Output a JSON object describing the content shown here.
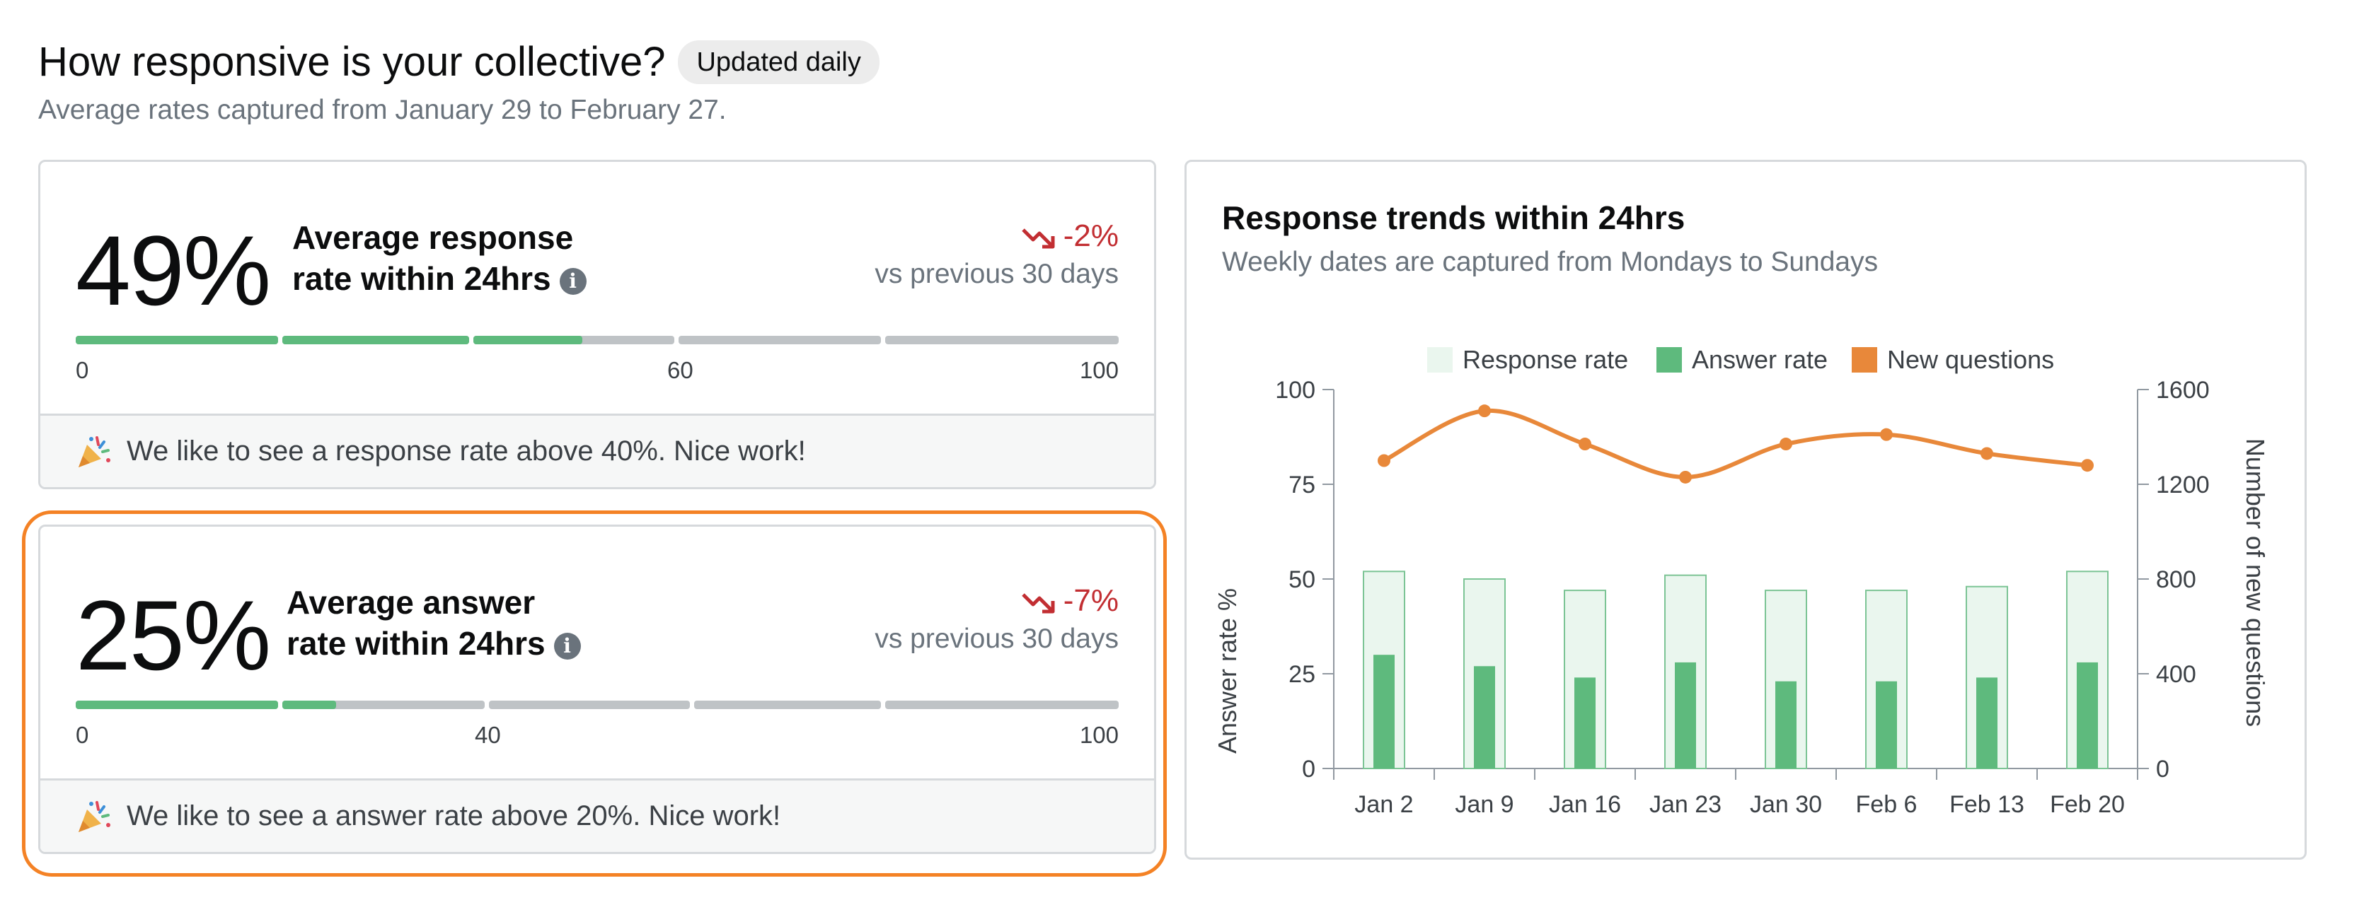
{
  "header": {
    "title": "How responsive is your collective?",
    "badge": "Updated daily",
    "subtitle": "Average rates captured from January 29 to February 27."
  },
  "response_card": {
    "value_text": "49%",
    "value": 49,
    "label_line1": "Average response",
    "label_line2": "rate within 24hrs",
    "info_icon": "i",
    "delta": "-2%",
    "delta_sub": "vs previous 30 days",
    "scale_min": "0",
    "scale_mid": "60",
    "scale_max": "100",
    "footer": "We like to see a response rate above 40%. Nice work!"
  },
  "answer_card": {
    "value_text": "25%",
    "value": 25,
    "label_line1": "Average answer",
    "label_line2": "rate within 24hrs",
    "info_icon": "i",
    "delta": "-7%",
    "delta_sub": "vs previous 30 days",
    "scale_min": "0",
    "scale_mid": "40",
    "scale_max": "100",
    "footer": "We like to see a answer rate above 20%. Nice work!"
  },
  "colors": {
    "accent_green": "#5eba7d",
    "light_green": "#eaf6ee",
    "orange": "#e8883a",
    "negative_red": "#c22e32",
    "highlight_orange": "#f48225"
  },
  "icons": {
    "trend": "trending-down-icon",
    "info": "info-icon",
    "celebrate": "party-popper-icon"
  },
  "chart": {
    "title": "Response trends within 24hrs",
    "subtitle": "Weekly dates are captured from Mondays to Sundays"
  },
  "chart_data": {
    "type": "bar",
    "categories": [
      "Jan 2",
      "Jan 9",
      "Jan 16",
      "Jan 23",
      "Jan 30",
      "Feb 6",
      "Feb 13",
      "Feb 20"
    ],
    "series": [
      {
        "name": "Response rate",
        "type": "bar",
        "axis": "left",
        "values": [
          52,
          50,
          47,
          51,
          47,
          47,
          48,
          52
        ]
      },
      {
        "name": "Answer rate",
        "type": "bar",
        "axis": "left",
        "values": [
          30,
          27,
          24,
          28,
          23,
          23,
          24,
          28
        ]
      },
      {
        "name": "New questions",
        "type": "line",
        "axis": "right",
        "values": [
          1300,
          1510,
          1370,
          1230,
          1370,
          1410,
          1330,
          1280
        ]
      }
    ],
    "ylabel": "Answer rate %",
    "y2label": "Number of new questions",
    "ylim": [
      0,
      100
    ],
    "y2lim": [
      0,
      1600
    ],
    "yticks": [
      "0",
      "25",
      "50",
      "75",
      "100"
    ],
    "y2ticks": [
      "0",
      "400",
      "800",
      "1200",
      "1600"
    ],
    "legend_position": "top-center",
    "grid": false
  }
}
